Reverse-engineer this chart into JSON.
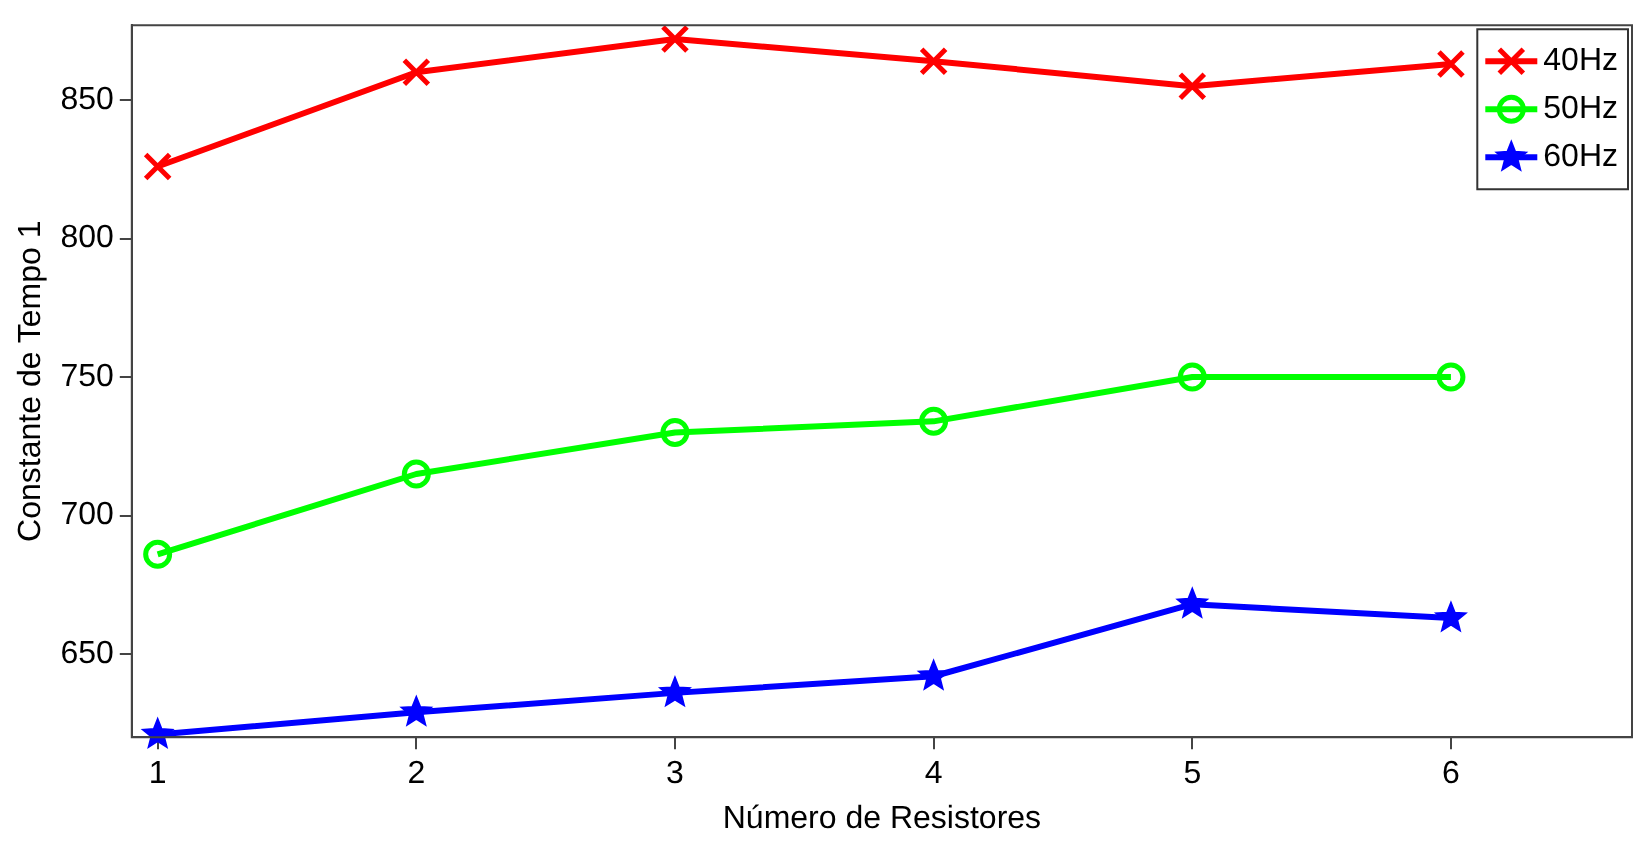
{
  "chart_data": {
    "type": "line",
    "xlabel": "Número de Resistores",
    "ylabel": "Constante de Tempo 1",
    "x": [
      1,
      2,
      3,
      4,
      5,
      6
    ],
    "series": [
      {
        "name": "40Hz",
        "color": "#ff0000",
        "marker": "cross",
        "values": [
          826,
          860,
          872,
          864,
          855,
          863
        ]
      },
      {
        "name": "50Hz",
        "color": "#00ff00",
        "marker": "circle",
        "values": [
          686,
          715,
          730,
          734,
          750,
          750
        ]
      },
      {
        "name": "60Hz",
        "color": "#0000ff",
        "marker": "star",
        "values": [
          621,
          629,
          636,
          642,
          668,
          663
        ]
      }
    ],
    "xlim": [
      0.9,
      6.7
    ],
    "ylim": [
      620,
      877
    ],
    "xticks": [
      1,
      2,
      3,
      4,
      5,
      6
    ],
    "yticks": [
      650,
      700,
      750,
      800,
      850
    ],
    "grid": false,
    "legend": "top right",
    "line_style": "solid"
  }
}
